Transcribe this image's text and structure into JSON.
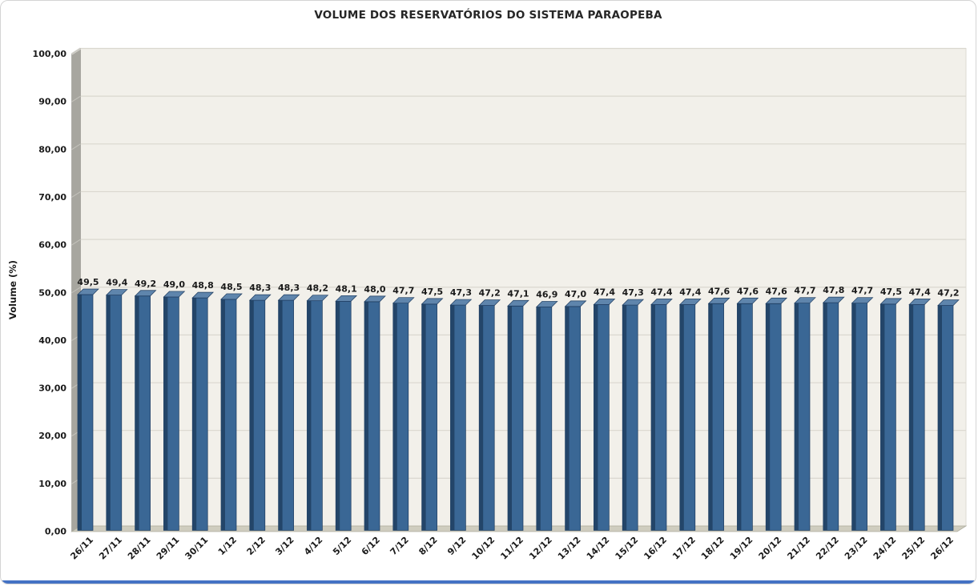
{
  "title": "VOLUME DOS RESERVATÓRIOS DO SISTEMA PARAOPEBA",
  "chart_data": {
    "type": "bar",
    "title": "VOLUME DOS RESERVATÓRIOS DO SISTEMA PARAOPEBA",
    "xlabel": "",
    "ylabel": "Volume (%)",
    "ylim": [
      0,
      100
    ],
    "ytick_step": 10,
    "ytick_labels": [
      "0,00",
      "10,00",
      "20,00",
      "30,00",
      "40,00",
      "50,00",
      "60,00",
      "70,00",
      "80,00",
      "90,00",
      "100,00"
    ],
    "grid": true,
    "legend": "none",
    "style": "excel-3d-column",
    "categories": [
      "26/11",
      "27/11",
      "28/11",
      "29/11",
      "30/11",
      "1/12",
      "2/12",
      "3/12",
      "4/12",
      "5/12",
      "6/12",
      "7/12",
      "8/12",
      "9/12",
      "10/12",
      "11/12",
      "12/12",
      "13/12",
      "14/12",
      "15/12",
      "16/12",
      "17/12",
      "18/12",
      "19/12",
      "20/12",
      "21/12",
      "22/12",
      "23/12",
      "24/12",
      "25/12",
      "26/12"
    ],
    "values": [
      49.5,
      49.4,
      49.2,
      49.0,
      48.8,
      48.5,
      48.3,
      48.3,
      48.2,
      48.1,
      48.0,
      47.7,
      47.5,
      47.3,
      47.2,
      47.1,
      46.9,
      47.0,
      47.4,
      47.3,
      47.4,
      47.4,
      47.6,
      47.6,
      47.6,
      47.7,
      47.8,
      47.7,
      47.5,
      47.4,
      47.2
    ],
    "value_labels": [
      "49,5",
      "49,4",
      "49,2",
      "49,0",
      "48,8",
      "48,5",
      "48,3",
      "48,3",
      "48,2",
      "48,1",
      "48,0",
      "47,7",
      "47,5",
      "47,3",
      "47,2",
      "47,1",
      "46,9",
      "47,0",
      "47,4",
      "47,3",
      "47,4",
      "47,4",
      "47,6",
      "47,6",
      "47,6",
      "47,7",
      "47,8",
      "47,7",
      "47,5",
      "47,4",
      "47,2"
    ]
  },
  "colors": {
    "bar_front": "#3a6795",
    "bar_front_shade": "#234569",
    "bar_top": "#5f85ac",
    "bar_outline": "#1c3a5e",
    "back_wall": "#f2f0ea",
    "side_wall": "#a7a69f",
    "side_wall_edge": "#d8d7d1",
    "floor": "#cfcdbf",
    "floor_edge": "#aeac9e",
    "gridline": "#dad7cf",
    "label_text": "#1a1a1a",
    "accent_bottom": "#4472c4"
  }
}
